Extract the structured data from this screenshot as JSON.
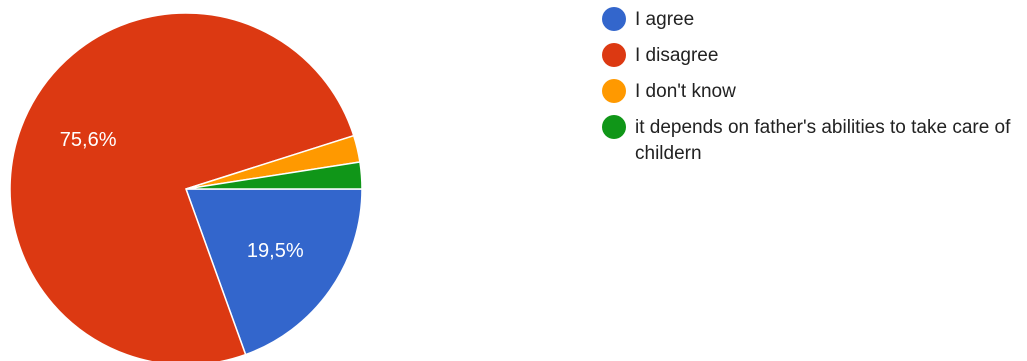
{
  "chart_data": {
    "type": "pie",
    "slices": [
      {
        "label": "I agree",
        "value": 19.5,
        "display": "19,5%",
        "color": "#3366cc"
      },
      {
        "label": "I disagree",
        "value": 75.6,
        "display": "75,6%",
        "color": "#dc3912"
      },
      {
        "label": "I don't know",
        "value": 2.45,
        "display": "",
        "color": "#ff9900"
      },
      {
        "label": "it depends on father's abilities to take care of childern",
        "value": 2.45,
        "display": "",
        "color": "#109618"
      }
    ],
    "legend_position": "right"
  }
}
